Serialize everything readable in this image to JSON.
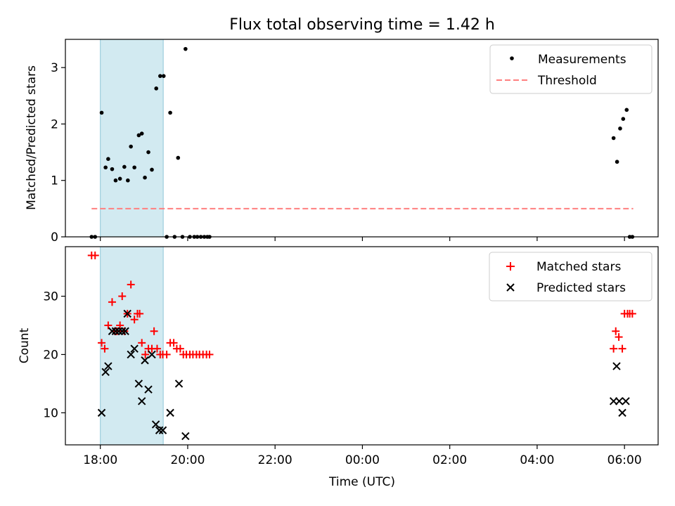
{
  "title": "Flux total observing time = 1.42 h",
  "xlabel": "Time (UTC)",
  "x_ticks": [
    "18:00",
    "20:00",
    "22:00",
    "00:00",
    "02:00",
    "04:00",
    "06:00"
  ],
  "x_tick_values_hours": [
    18,
    20,
    22,
    24,
    26,
    28,
    30
  ],
  "x_range_hours": [
    17.2,
    30.77
  ],
  "highlight_window_hours": [
    18.0,
    19.44
  ],
  "colors": {
    "highlight": "#add8e6",
    "measurements": "#000000",
    "threshold": "#ff7f7f",
    "matched": "#ff0000",
    "predicted": "#000000"
  },
  "chart_data": [
    {
      "type": "scatter",
      "ylabel": "Matched/Predicted stars",
      "ylim": [
        0,
        3.5
      ],
      "y_ticks": [
        0,
        1,
        2,
        3
      ],
      "legend_position": "top-right",
      "series": [
        {
          "name": "Measurements",
          "marker": "dot",
          "x": [
            17.8,
            17.88,
            18.03,
            18.12,
            18.18,
            18.27,
            18.35,
            18.45,
            18.55,
            18.63,
            18.7,
            18.78,
            18.88,
            18.95,
            19.02,
            19.1,
            19.18,
            19.28,
            19.37,
            19.45,
            19.52,
            19.6,
            19.7,
            19.78,
            19.88,
            19.95,
            20.05,
            20.15,
            20.22,
            20.3,
            20.38,
            20.45,
            20.5,
            29.75,
            29.83,
            29.9,
            29.97,
            30.05,
            30.12,
            30.18
          ],
          "y": [
            0,
            0,
            2.2,
            1.23,
            1.38,
            1.2,
            1.0,
            1.03,
            1.24,
            1.0,
            1.6,
            1.23,
            1.8,
            1.83,
            1.05,
            1.5,
            1.19,
            2.63,
            2.85,
            2.85,
            0,
            2.2,
            0,
            1.4,
            0,
            3.33,
            0,
            0,
            0,
            0,
            0,
            0,
            0,
            1.75,
            1.33,
            1.92,
            2.09,
            2.25,
            0,
            0
          ]
        },
        {
          "name": "Threshold",
          "style": "dashed-line",
          "x": [
            17.8,
            30.2
          ],
          "y": [
            0.5,
            0.5
          ]
        }
      ]
    },
    {
      "type": "scatter",
      "ylabel": "Count",
      "ylim": [
        4.5,
        38.5
      ],
      "y_ticks": [
        10,
        20,
        30
      ],
      "legend_position": "top-right",
      "series": [
        {
          "name": "Matched stars",
          "marker": "plus",
          "x": [
            17.8,
            17.88,
            18.03,
            18.1,
            18.18,
            18.27,
            18.33,
            18.38,
            18.45,
            18.5,
            18.55,
            18.62,
            18.7,
            18.78,
            18.85,
            18.9,
            18.95,
            19.03,
            19.1,
            19.18,
            19.23,
            19.3,
            19.37,
            19.43,
            19.52,
            19.6,
            19.68,
            19.75,
            19.83,
            19.9,
            19.97,
            20.05,
            20.12,
            20.2,
            20.27,
            20.35,
            20.43,
            20.5,
            29.75,
            29.8,
            29.87,
            29.95,
            30.0,
            30.07,
            30.12,
            30.18
          ],
          "y": [
            37,
            37,
            22,
            21,
            25,
            29,
            24,
            24,
            25,
            30,
            24,
            27,
            32,
            26,
            27,
            27,
            22,
            20,
            21,
            21,
            24,
            21,
            20,
            20,
            20,
            22,
            22,
            21,
            21,
            20,
            20,
            20,
            20,
            20,
            20,
            20,
            20,
            20,
            21,
            24,
            23,
            21,
            27,
            27,
            27,
            27
          ]
        },
        {
          "name": "Predicted stars",
          "marker": "x",
          "x": [
            18.03,
            18.12,
            18.18,
            18.27,
            18.35,
            18.42,
            18.5,
            18.57,
            18.62,
            18.7,
            18.78,
            18.88,
            18.95,
            19.02,
            19.1,
            19.18,
            19.27,
            19.35,
            19.43,
            19.6,
            19.8,
            19.95,
            29.75,
            29.82,
            29.88,
            29.95,
            30.03
          ],
          "y": [
            10,
            17,
            18,
            24,
            24,
            24,
            24,
            24,
            27,
            20,
            21,
            15,
            12,
            19,
            14,
            20,
            8,
            7,
            7,
            10,
            15,
            6,
            12,
            18,
            12,
            10,
            12
          ]
        }
      ]
    }
  ]
}
